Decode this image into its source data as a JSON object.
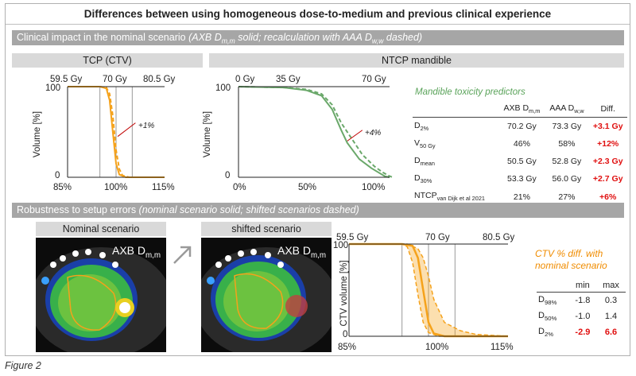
{
  "title": "Differences between using homogeneous dose-to-medium and previous clinical experience",
  "section1": {
    "label_plain": "Clinical impact in the nominal scenario ",
    "label_italic": "(AXB D",
    "label_sub1": "m,m",
    "label_italic2": " solid; recalculation with AAA D",
    "label_sub2": "w,w",
    "label_italic3": " dashed)"
  },
  "tcp_panel": {
    "header": "TCP (CTV)",
    "top_ticks": [
      "59.5 Gy",
      "70 Gy",
      "80.5 Gy"
    ],
    "bottom_ticks": [
      "85%",
      "100%",
      "115%"
    ],
    "ylabel": "Volume [%]",
    "yticks": [
      "100",
      "0"
    ],
    "annotation": "+1%"
  },
  "ntcp_panel": {
    "header": "NTCP mandible",
    "top_ticks": [
      "0 Gy",
      "35 Gy",
      "70 Gy"
    ],
    "bottom_ticks": [
      "0%",
      "50%",
      "100%"
    ],
    "ylabel": "Volume [%]",
    "yticks": [
      "100",
      "0"
    ],
    "annotation": "+4%"
  },
  "predictors": {
    "title": "Mandible toxicity predictors",
    "col_axb": "AXB D",
    "col_axb_sub": "m,m",
    "col_aaa": "AAA D",
    "col_aaa_sub": "w,w",
    "col_diff": "Diff.",
    "rows": [
      {
        "metric": "D",
        "sub": "2%",
        "axb": "70.2 Gy",
        "aaa": "73.3 Gy",
        "diff": "+3.1 Gy"
      },
      {
        "metric": "V",
        "sub": "50 Gy",
        "axb": "46%",
        "aaa": "58%",
        "diff": "+12%"
      },
      {
        "metric": "D",
        "sub": "mean",
        "axb": "50.5 Gy",
        "aaa": "52.8 Gy",
        "diff": "+2.3 Gy"
      },
      {
        "metric": "D",
        "sub": "30%",
        "axb": "53.3 Gy",
        "aaa": "56.0 Gy",
        "diff": "+2.7 Gy"
      },
      {
        "metric": "NTCP",
        "sub": "van Dijk et al 2021",
        "axb": "21%",
        "aaa": "27%",
        "diff": "+6%"
      }
    ]
  },
  "section2": {
    "label_plain": "Robustness to setup errors ",
    "label_italic": "(nominal scenario solid; shifted scenarios dashed)"
  },
  "ct_nominal": {
    "header": "Nominal scenario",
    "overlay": "AXB D",
    "overlay_sub": "m,m"
  },
  "ct_shifted": {
    "header": "shifted scenario",
    "overlay": "AXB D",
    "overlay_sub": "m,m"
  },
  "robust_plot": {
    "top_ticks": [
      "59.5 Gy",
      "70 Gy",
      "80.5 Gy"
    ],
    "bottom_ticks": [
      "85%",
      "100%",
      "115%"
    ],
    "ylabel": "CTV volume [%]",
    "yticks": [
      "100",
      "0"
    ]
  },
  "ctv_diff": {
    "title": "CTV % diff. with nominal scenario",
    "col_min": "min",
    "col_max": "max",
    "rows": [
      {
        "metric": "D",
        "sub": "98%",
        "min": "-1.8",
        "max": "0.3",
        "highlight": false
      },
      {
        "metric": "D",
        "sub": "50%",
        "min": "-1.0",
        "max": "1.4",
        "highlight": false
      },
      {
        "metric": "D",
        "sub": "2%",
        "min": "-2.9",
        "max": "6.6",
        "highlight": true
      }
    ]
  },
  "caption": "Figure 2",
  "colors": {
    "orange": "#f5a21b",
    "green": "#6aa86a",
    "red": "#e01010",
    "section": "#a6a6a6",
    "subhead": "#d9d9d9"
  },
  "chart_data": [
    {
      "type": "line",
      "xlabel": "",
      "ylabel": "Volume [%]",
      "xlim": [
        85,
        115
      ],
      "ylim": [
        0,
        100
      ],
      "series": [
        {
          "x": [
            85,
            95,
            97,
            98,
            99,
            100,
            101,
            103,
            115
          ],
          "values": [
            100,
            100,
            98,
            85,
            50,
            15,
            3,
            0,
            0
          ]
        },
        {
          "x": [
            85,
            95,
            97,
            98,
            99,
            100,
            101,
            102,
            104,
            115
          ],
          "values": [
            100,
            100,
            99,
            92,
            68,
            30,
            9,
            2,
            0,
            0
          ]
        }
      ]
    },
    {
      "type": "line",
      "xlabel": "",
      "ylabel": "Volume [%]",
      "xlim": [
        0,
        100
      ],
      "ylim": [
        0,
        100
      ],
      "series": [
        {
          "x": [
            0,
            30,
            45,
            55,
            62,
            68,
            72,
            80,
            88,
            93,
            97,
            100
          ],
          "values": [
            100,
            99,
            96,
            90,
            75,
            52,
            38,
            20,
            10,
            5,
            1,
            0
          ]
        },
        {
          "x": [
            0,
            30,
            45,
            55,
            62,
            68,
            74,
            82,
            90,
            95,
            99,
            102
          ],
          "values": [
            100,
            99,
            97,
            92,
            80,
            60,
            45,
            25,
            12,
            6,
            2,
            0
          ]
        }
      ]
    },
    {
      "type": "line",
      "xlabel": "",
      "ylabel": "CTV volume [%]",
      "xlim": [
        85,
        115
      ],
      "ylim": [
        0,
        100
      ],
      "series": [
        {
          "x": [
            85,
            95,
            97,
            98,
            99,
            100,
            101,
            103,
            115
          ],
          "values": [
            100,
            100,
            98,
            85,
            50,
            15,
            3,
            0,
            0
          ]
        },
        {
          "x": [
            85,
            95,
            96,
            97,
            98,
            99,
            100,
            102,
            115
          ],
          "values": [
            100,
            100,
            97,
            80,
            45,
            15,
            4,
            0,
            0
          ]
        },
        {
          "x": [
            85,
            96,
            98,
            99,
            100,
            101,
            103,
            106,
            109,
            115
          ],
          "values": [
            100,
            100,
            95,
            85,
            65,
            40,
            15,
            6,
            2,
            0
          ]
        }
      ]
    }
  ]
}
